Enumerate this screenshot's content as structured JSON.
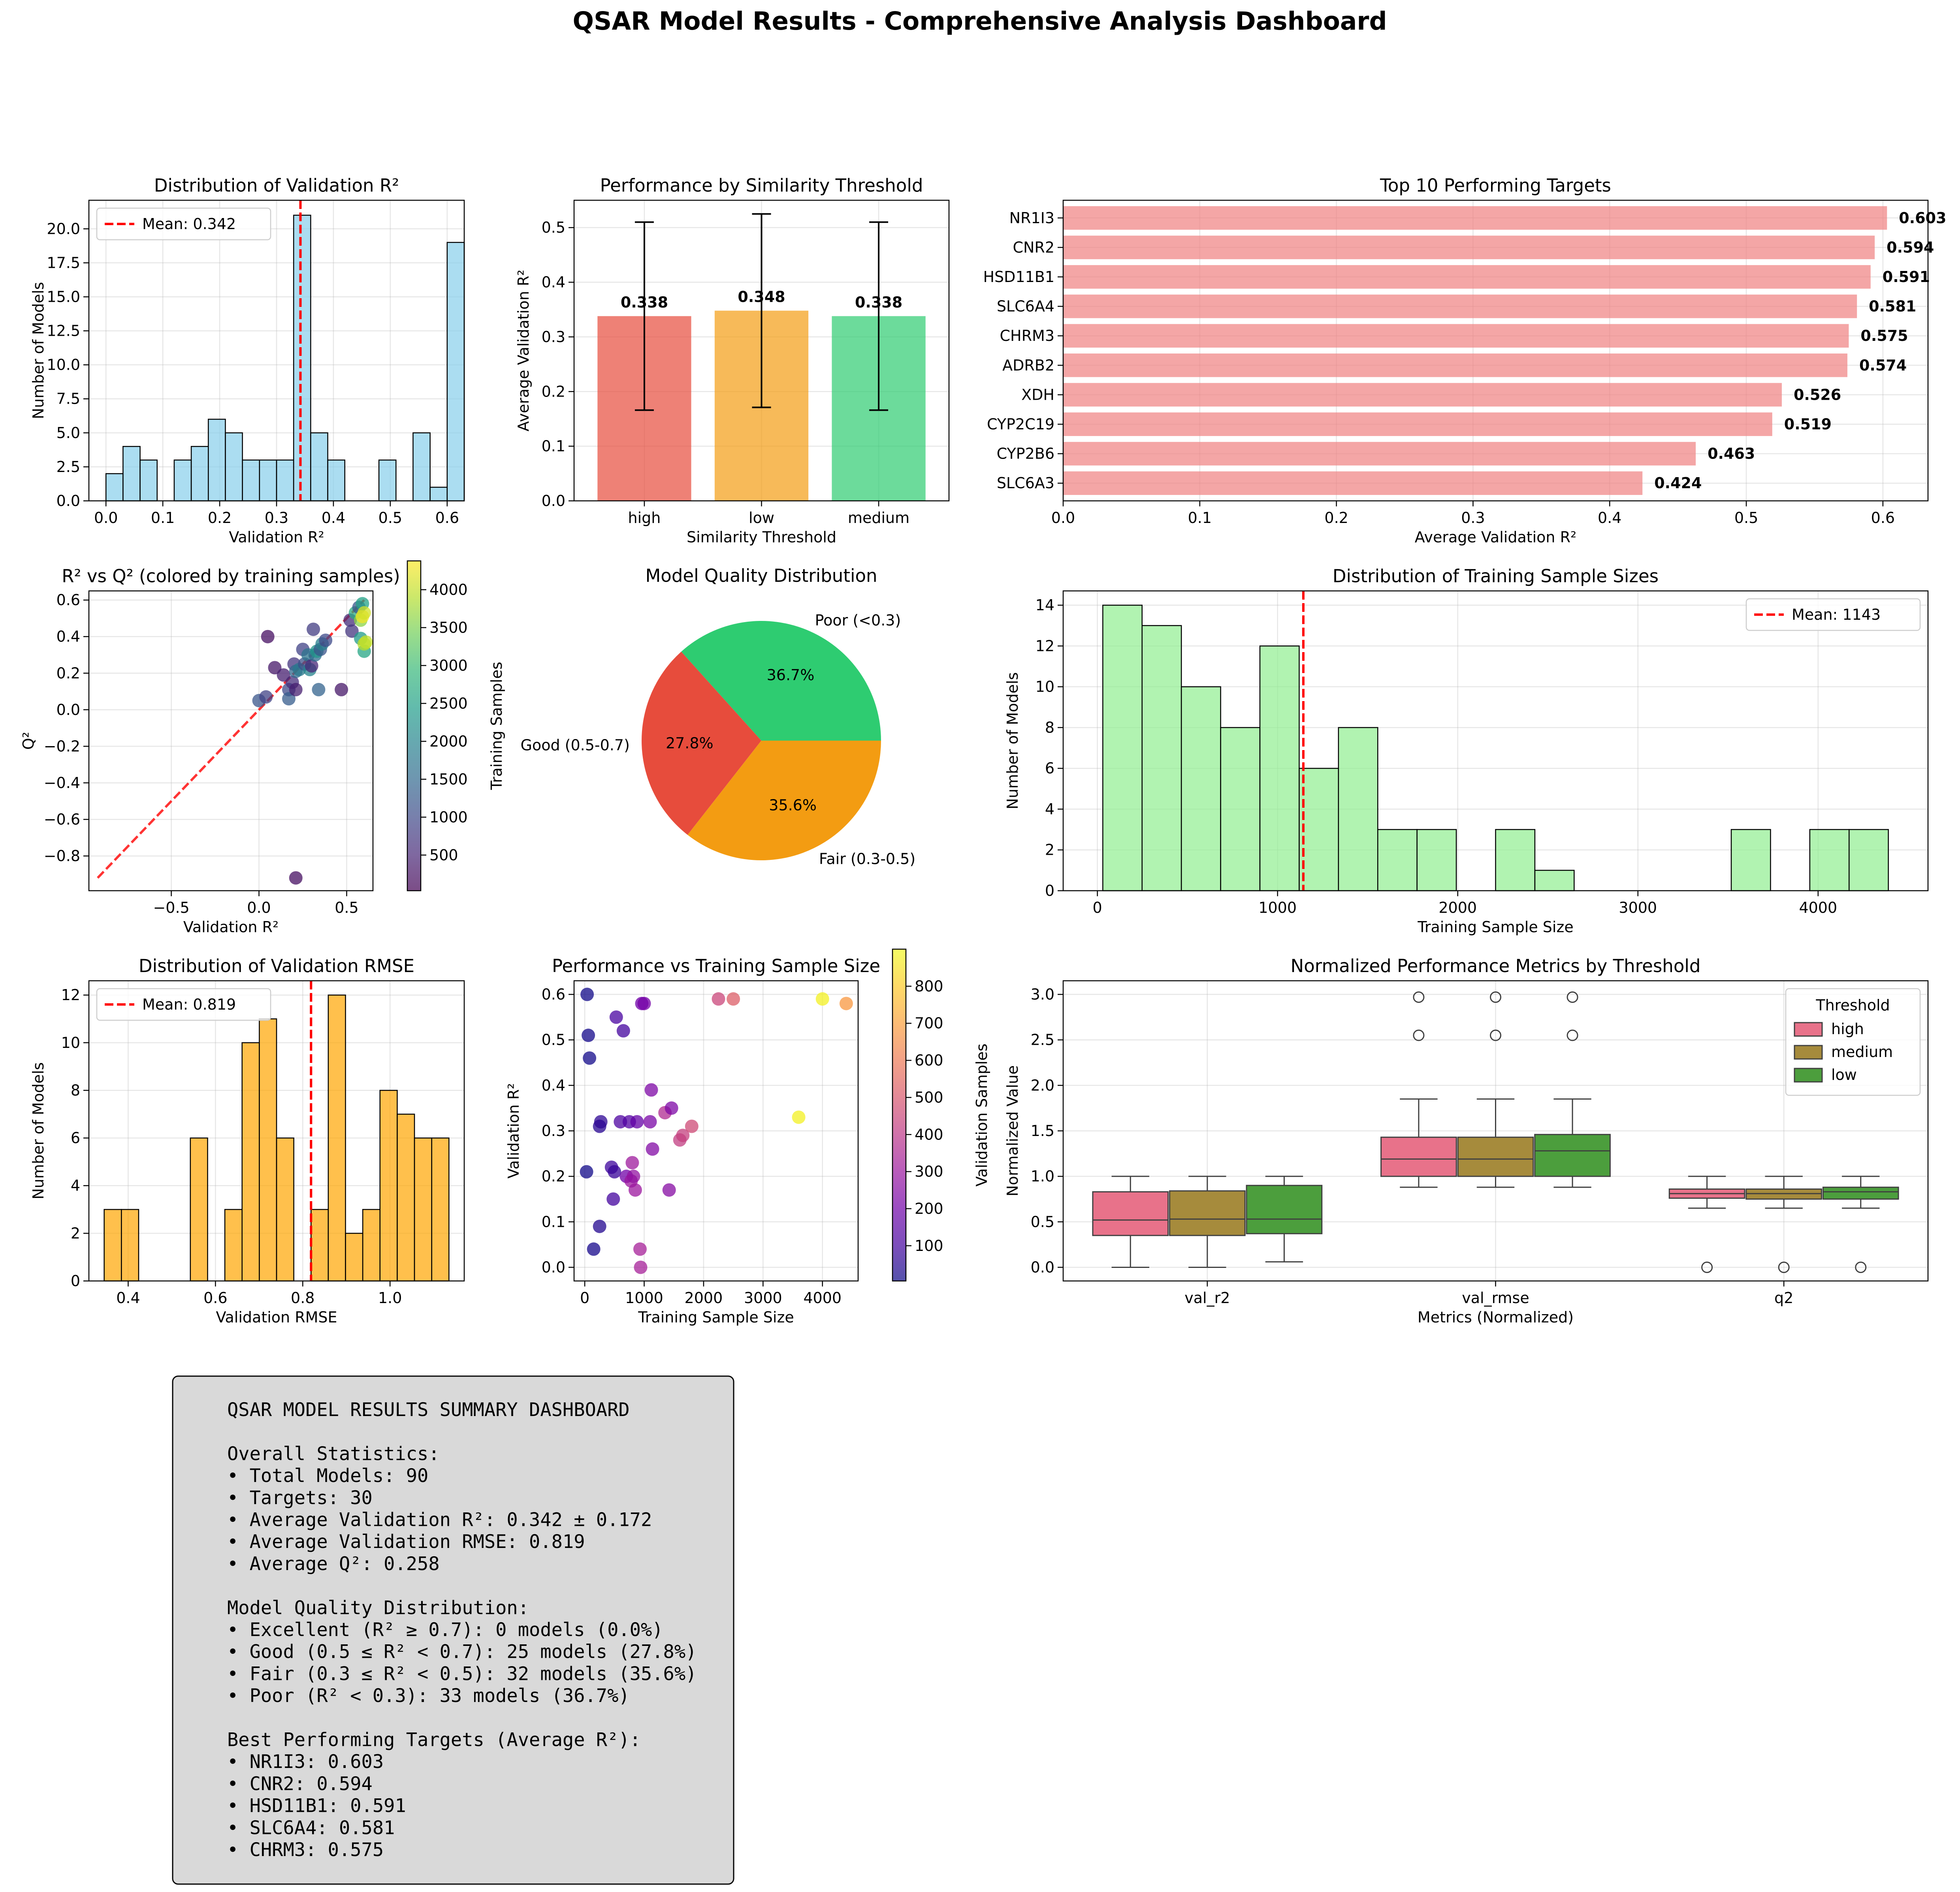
{
  "main_title": "QSAR Model Results - Comprehensive Analysis Dashboard",
  "chart_data": [
    {
      "id": "val_r2_hist",
      "type": "bar",
      "title": "Distribution of Validation R²",
      "xlabel": "Validation R²",
      "ylabel": "Number of Models",
      "xlim": [
        -0.03,
        0.63
      ],
      "ylim": [
        0,
        22.1
      ],
      "xticks": [
        0.0,
        0.1,
        0.2,
        0.3,
        0.4,
        0.5,
        0.6
      ],
      "xtick_labels": [
        "0.0",
        "0.1",
        "0.2",
        "0.3",
        "0.4",
        "0.5",
        "0.6"
      ],
      "yticks": [
        0.0,
        2.5,
        5.0,
        7.5,
        10.0,
        12.5,
        15.0,
        17.5,
        20.0
      ],
      "ytick_labels": [
        "0.0",
        "2.5",
        "5.0",
        "7.5",
        "10.0",
        "12.5",
        "15.0",
        "17.5",
        "20.0"
      ],
      "bin_start": 0.0,
      "bin_width": 0.03,
      "counts": [
        2,
        4,
        3,
        0,
        3,
        4,
        6,
        5,
        3,
        3,
        3,
        21,
        5,
        3,
        0,
        0,
        3,
        0,
        5,
        1,
        19
      ],
      "bar_color": "#87ceeb",
      "mean_line": {
        "value": 0.342,
        "label": "Mean: 0.342"
      },
      "legend": "top-left",
      "grid": true
    },
    {
      "id": "threshold_bar",
      "type": "bar",
      "title": "Performance by Similarity Threshold",
      "xlabel": "Similarity Threshold",
      "ylabel": "Average Validation R²",
      "categories": [
        "high",
        "low",
        "medium"
      ],
      "values": [
        0.338,
        0.348,
        0.338
      ],
      "errors": [
        0.172,
        0.177,
        0.172
      ],
      "value_labels": [
        "0.338",
        "0.348",
        "0.338"
      ],
      "colors": [
        "#e74c3c",
        "#f39c12",
        "#2ecc71"
      ],
      "ylim": [
        0,
        0.55
      ],
      "yticks": [
        0.0,
        0.1,
        0.2,
        0.3,
        0.4,
        0.5
      ],
      "ytick_labels": [
        "0.0",
        "0.1",
        "0.2",
        "0.3",
        "0.4",
        "0.5"
      ],
      "grid": true
    },
    {
      "id": "top_targets",
      "type": "bar",
      "orientation": "horizontal",
      "title": "Top 10 Performing Targets",
      "xlabel": "Average Validation R²",
      "categories": [
        "NR1I3",
        "CNR2",
        "HSD11B1",
        "SLC6A4",
        "CHRM3",
        "ADRB2",
        "XDH",
        "CYP2C19",
        "CYP2B6",
        "SLC6A3"
      ],
      "values": [
        0.603,
        0.594,
        0.591,
        0.581,
        0.575,
        0.574,
        0.526,
        0.519,
        0.463,
        0.424
      ],
      "value_labels": [
        "0.603",
        "0.594",
        "0.591",
        "0.581",
        "0.575",
        "0.574",
        "0.526",
        "0.519",
        "0.463",
        "0.424"
      ],
      "bar_color": "#f08080",
      "xlim": [
        0,
        0.633
      ],
      "xticks": [
        0.0,
        0.1,
        0.2,
        0.3,
        0.4,
        0.5,
        0.6
      ],
      "xtick_labels": [
        "0.0",
        "0.1",
        "0.2",
        "0.3",
        "0.4",
        "0.5",
        "0.6"
      ],
      "grid": true
    },
    {
      "id": "r2_vs_q2",
      "type": "scatter",
      "title": "R² vs Q² (colored by training samples)",
      "xlabel": "Validation R²",
      "ylabel": "Q²",
      "xlim": [
        -0.97,
        0.65
      ],
      "ylim": [
        -0.99,
        0.65
      ],
      "xticks": [
        -0.5,
        0.0,
        0.5
      ],
      "xtick_labels": [
        "−0.5",
        "0.0",
        "0.5"
      ],
      "yticks": [
        -0.8,
        -0.6,
        -0.4,
        -0.2,
        0.0,
        0.2,
        0.4,
        0.6
      ],
      "ytick_labels": [
        "−0.8",
        "−0.6",
        "−0.4",
        "−0.2",
        "0.0",
        "0.2",
        "0.4",
        "0.6"
      ],
      "diagonal": [
        -0.92,
        0.6
      ],
      "colorbar": {
        "label": "Training Samples",
        "min": 30,
        "max": 4380,
        "ticks": [
          500,
          1000,
          1500,
          2000,
          2500,
          3000,
          3500,
          4000
        ],
        "tick_labels": [
          "500",
          "1000",
          "1500",
          "2000",
          "2500",
          "3000",
          "3500",
          "4000"
        ],
        "colormap": "viridis"
      },
      "points": [
        {
          "x": 0.0,
          "y": 0.05,
          "c": 1200
        },
        {
          "x": 0.04,
          "y": 0.07,
          "c": 900
        },
        {
          "x": 0.05,
          "y": 0.4,
          "c": 200
        },
        {
          "x": 0.09,
          "y": 0.23,
          "c": 300
        },
        {
          "x": 0.14,
          "y": 0.19,
          "c": 400
        },
        {
          "x": 0.17,
          "y": 0.11,
          "c": 1000
        },
        {
          "x": 0.17,
          "y": 0.06,
          "c": 1300
        },
        {
          "x": 0.19,
          "y": 0.15,
          "c": 600
        },
        {
          "x": 0.2,
          "y": 0.25,
          "c": 700
        },
        {
          "x": 0.21,
          "y": 0.11,
          "c": 400
        },
        {
          "x": 0.21,
          "y": 0.21,
          "c": 1500
        },
        {
          "x": 0.23,
          "y": 0.22,
          "c": 1800
        },
        {
          "x": 0.25,
          "y": 0.33,
          "c": 900
        },
        {
          "x": 0.26,
          "y": 0.25,
          "c": 1100
        },
        {
          "x": 0.28,
          "y": 0.3,
          "c": 1700
        },
        {
          "x": 0.29,
          "y": 0.22,
          "c": 2000
        },
        {
          "x": 0.3,
          "y": 0.24,
          "c": 500
        },
        {
          "x": 0.31,
          "y": 0.44,
          "c": 800
        },
        {
          "x": 0.32,
          "y": 0.3,
          "c": 1600
        },
        {
          "x": 0.33,
          "y": 0.32,
          "c": 2300
        },
        {
          "x": 0.34,
          "y": 0.11,
          "c": 1400
        },
        {
          "x": 0.35,
          "y": 0.33,
          "c": 1200
        },
        {
          "x": 0.36,
          "y": 0.36,
          "c": 1900
        },
        {
          "x": 0.38,
          "y": 0.38,
          "c": 1000
        },
        {
          "x": 0.47,
          "y": 0.11,
          "c": 300
        },
        {
          "x": 0.52,
          "y": 0.49,
          "c": 600
        },
        {
          "x": 0.53,
          "y": 0.43,
          "c": 700
        },
        {
          "x": 0.55,
          "y": 0.53,
          "c": 2700
        },
        {
          "x": 0.57,
          "y": 0.56,
          "c": 1200
        },
        {
          "x": 0.58,
          "y": 0.39,
          "c": 2400
        },
        {
          "x": 0.58,
          "y": 0.49,
          "c": 3600
        },
        {
          "x": 0.59,
          "y": 0.51,
          "c": 4300
        },
        {
          "x": 0.59,
          "y": 0.58,
          "c": 2500
        },
        {
          "x": 0.6,
          "y": 0.32,
          "c": 2600
        },
        {
          "x": 0.6,
          "y": 0.36,
          "c": 3900
        },
        {
          "x": 0.6,
          "y": 0.53,
          "c": 4100
        },
        {
          "x": 0.61,
          "y": 0.37,
          "c": 4000
        },
        {
          "x": 0.21,
          "y": -0.92,
          "c": 200
        }
      ],
      "grid": true
    },
    {
      "id": "quality_pie",
      "type": "pie",
      "title": "Model Quality Distribution",
      "labels": [
        "Poor (<0.3)",
        "Good (0.5-0.7)",
        "Fair (0.3-0.5)"
      ],
      "values": [
        36.7,
        27.8,
        35.6
      ],
      "pct_labels": [
        "36.7%",
        "27.8%",
        "35.6%"
      ],
      "colors": [
        "#2ecc71",
        "#e74c3c",
        "#f39c12"
      ]
    },
    {
      "id": "train_size_hist",
      "type": "bar",
      "title": "Distribution of Training Sample Sizes",
      "xlabel": "Training Sample Size",
      "ylabel": "Number of Models",
      "xlim": [
        -190,
        4610
      ],
      "ylim": [
        0,
        14.7
      ],
      "xticks": [
        0,
        1000,
        2000,
        3000,
        4000
      ],
      "xtick_labels": [
        "0",
        "1000",
        "2000",
        "3000",
        "4000"
      ],
      "yticks": [
        0,
        2,
        4,
        6,
        8,
        10,
        12,
        14
      ],
      "ytick_labels": [
        "0",
        "2",
        "4",
        "6",
        "8",
        "10",
        "12",
        "14"
      ],
      "bin_start": 30,
      "bin_width": 218,
      "counts": [
        14,
        13,
        10,
        8,
        12,
        6,
        8,
        3,
        3,
        0,
        3,
        1,
        0,
        0,
        0,
        0,
        3,
        0,
        3,
        3
      ],
      "bar_color": "#90ee90",
      "mean_line": {
        "value": 1143,
        "label": "Mean: 1143"
      },
      "legend": "top-right",
      "grid": true
    },
    {
      "id": "rmse_hist",
      "type": "bar",
      "title": "Distribution of Validation RMSE",
      "xlabel": "Validation RMSE",
      "ylabel": "Number of Models",
      "xlim": [
        0.31,
        1.17
      ],
      "ylim": [
        0,
        12.6
      ],
      "xticks": [
        0.4,
        0.6,
        0.8,
        1.0
      ],
      "xtick_labels": [
        "0.4",
        "0.6",
        "0.8",
        "1.0"
      ],
      "yticks": [
        0,
        2,
        4,
        6,
        8,
        10,
        12
      ],
      "ytick_labels": [
        "0",
        "2",
        "4",
        "6",
        "8",
        "10",
        "12"
      ],
      "bin_start": 0.345,
      "bin_width": 0.0395,
      "counts": [
        3,
        3,
        0,
        0,
        0,
        6,
        0,
        3,
        10,
        11,
        6,
        0,
        3,
        12,
        2,
        3,
        8,
        7,
        6,
        6
      ],
      "bar_color": "#ffa500",
      "mean_line": {
        "value": 0.819,
        "label": "Mean: 0.819"
      },
      "legend": "top-left",
      "grid": true
    },
    {
      "id": "perf_vs_size",
      "type": "scatter",
      "title": "Performance vs Training Sample Size",
      "xlabel": "Training Sample Size",
      "ylabel": "Validation R²",
      "xlim": [
        -180,
        4600
      ],
      "ylim": [
        -0.03,
        0.63
      ],
      "xticks": [
        0,
        1000,
        2000,
        3000,
        4000
      ],
      "xtick_labels": [
        "0",
        "1000",
        "2000",
        "3000",
        "4000"
      ],
      "yticks": [
        0.0,
        0.1,
        0.2,
        0.3,
        0.4,
        0.5,
        0.6
      ],
      "ytick_labels": [
        "0.0",
        "0.1",
        "0.2",
        "0.3",
        "0.4",
        "0.5",
        "0.6"
      ],
      "colorbar": {
        "label": "Validation Samples",
        "min": 5,
        "max": 900,
        "ticks": [
          100,
          200,
          300,
          400,
          500,
          600,
          700,
          800
        ],
        "tick_labels": [
          "100",
          "200",
          "300",
          "400",
          "500",
          "600",
          "700",
          "800"
        ],
        "colormap": "plasma"
      },
      "points": [
        {
          "x": 40,
          "y": 0.6,
          "c": 10
        },
        {
          "x": 60,
          "y": 0.51,
          "c": 15
        },
        {
          "x": 80,
          "y": 0.46,
          "c": 12
        },
        {
          "x": 30,
          "y": 0.21,
          "c": 10
        },
        {
          "x": 150,
          "y": 0.04,
          "c": 20
        },
        {
          "x": 250,
          "y": 0.09,
          "c": 40
        },
        {
          "x": 250,
          "y": 0.31,
          "c": 50
        },
        {
          "x": 270,
          "y": 0.32,
          "c": 60
        },
        {
          "x": 450,
          "y": 0.22,
          "c": 90
        },
        {
          "x": 480,
          "y": 0.15,
          "c": 100
        },
        {
          "x": 500,
          "y": 0.21,
          "c": 80
        },
        {
          "x": 530,
          "y": 0.55,
          "c": 110
        },
        {
          "x": 600,
          "y": 0.32,
          "c": 120
        },
        {
          "x": 650,
          "y": 0.52,
          "c": 100
        },
        {
          "x": 700,
          "y": 0.2,
          "c": 200
        },
        {
          "x": 750,
          "y": 0.32,
          "c": 130
        },
        {
          "x": 780,
          "y": 0.19,
          "c": 300
        },
        {
          "x": 800,
          "y": 0.23,
          "c": 310
        },
        {
          "x": 820,
          "y": 0.2,
          "c": 280
        },
        {
          "x": 850,
          "y": 0.17,
          "c": 300
        },
        {
          "x": 880,
          "y": 0.32,
          "c": 170
        },
        {
          "x": 930,
          "y": 0.04,
          "c": 330
        },
        {
          "x": 940,
          "y": 0.0,
          "c": 330
        },
        {
          "x": 960,
          "y": 0.58,
          "c": 200
        },
        {
          "x": 1000,
          "y": 0.58,
          "c": 210
        },
        {
          "x": 1100,
          "y": 0.32,
          "c": 220
        },
        {
          "x": 1120,
          "y": 0.39,
          "c": 230
        },
        {
          "x": 1140,
          "y": 0.26,
          "c": 240
        },
        {
          "x": 1350,
          "y": 0.34,
          "c": 360
        },
        {
          "x": 1420,
          "y": 0.17,
          "c": 250
        },
        {
          "x": 1460,
          "y": 0.35,
          "c": 230
        },
        {
          "x": 1600,
          "y": 0.28,
          "c": 420
        },
        {
          "x": 1650,
          "y": 0.29,
          "c": 430
        },
        {
          "x": 1800,
          "y": 0.31,
          "c": 460
        },
        {
          "x": 2250,
          "y": 0.59,
          "c": 450
        },
        {
          "x": 2500,
          "y": 0.59,
          "c": 520
        },
        {
          "x": 3600,
          "y": 0.33,
          "c": 880
        },
        {
          "x": 4000,
          "y": 0.59,
          "c": 880
        },
        {
          "x": 4400,
          "y": 0.58,
          "c": 680
        }
      ],
      "grid": true
    },
    {
      "id": "normalized_box",
      "type": "box",
      "title": "Normalized Performance Metrics by Threshold",
      "xlabel": "Metrics (Normalized)",
      "ylabel": "Normalized Value",
      "categories": [
        "val_r2",
        "val_rmse",
        "q2"
      ],
      "ylim": [
        -0.15,
        3.15
      ],
      "yticks": [
        0.0,
        0.5,
        1.0,
        1.5,
        2.0,
        2.5,
        3.0
      ],
      "ytick_labels": [
        "0.0",
        "0.5",
        "1.0",
        "1.5",
        "2.0",
        "2.5",
        "3.0"
      ],
      "legend_title": "Threshold",
      "legend": "top-right",
      "series": [
        {
          "name": "high",
          "color": "#e8728a",
          "boxes": [
            {
              "whislo": 0.0,
              "q1": 0.35,
              "med": 0.52,
              "q3": 0.83,
              "whishi": 1.0,
              "fliers": []
            },
            {
              "whislo": 0.88,
              "q1": 1.0,
              "med": 1.19,
              "q3": 1.43,
              "whishi": 1.85,
              "fliers": [
                2.55,
                2.97
              ]
            },
            {
              "whislo": 0.65,
              "q1": 0.76,
              "med": 0.81,
              "q3": 0.86,
              "whishi": 1.0,
              "fliers": [
                0.0
              ]
            }
          ]
        },
        {
          "name": "medium",
          "color": "#a68b3c",
          "boxes": [
            {
              "whislo": 0.0,
              "q1": 0.35,
              "med": 0.53,
              "q3": 0.84,
              "whishi": 1.0,
              "fliers": []
            },
            {
              "whislo": 0.88,
              "q1": 1.0,
              "med": 1.19,
              "q3": 1.43,
              "whishi": 1.85,
              "fliers": [
                2.55,
                2.97
              ]
            },
            {
              "whislo": 0.65,
              "q1": 0.75,
              "med": 0.81,
              "q3": 0.86,
              "whishi": 1.0,
              "fliers": [
                0.0
              ]
            }
          ]
        },
        {
          "name": "low",
          "color": "#4c9e3d",
          "boxes": [
            {
              "whislo": 0.06,
              "q1": 0.37,
              "med": 0.53,
              "q3": 0.9,
              "whishi": 1.0,
              "fliers": []
            },
            {
              "whislo": 0.88,
              "q1": 1.0,
              "med": 1.28,
              "q3": 1.46,
              "whishi": 1.85,
              "fliers": [
                2.55,
                2.97
              ]
            },
            {
              "whislo": 0.65,
              "q1": 0.75,
              "med": 0.83,
              "q3": 0.88,
              "whishi": 1.0,
              "fliers": [
                0.0
              ]
            }
          ]
        }
      ],
      "grid": true
    }
  ],
  "summary": {
    "lines": [
      "QSAR MODEL RESULTS SUMMARY DASHBOARD",
      "",
      "Overall Statistics:",
      "• Total Models: 90",
      "• Targets: 30",
      "• Average Validation R²: 0.342 ± 0.172",
      "• Average Validation RMSE: 0.819",
      "• Average Q²: 0.258",
      "",
      "Model Quality Distribution:",
      "• Excellent (R² ≥ 0.7): 0 models (0.0%)",
      "• Good (0.5 ≤ R² < 0.7): 25 models (27.8%)",
      "• Fair (0.3 ≤ R² < 0.5): 32 models (35.6%)",
      "• Poor (R² < 0.3): 33 models (36.7%)",
      "",
      "Best Performing Targets (Average R²):",
      "• NR1I3: 0.603",
      "• CNR2: 0.594",
      "• HSD11B1: 0.591",
      "• SLC6A4: 0.581",
      "• CHRM3: 0.575"
    ]
  }
}
